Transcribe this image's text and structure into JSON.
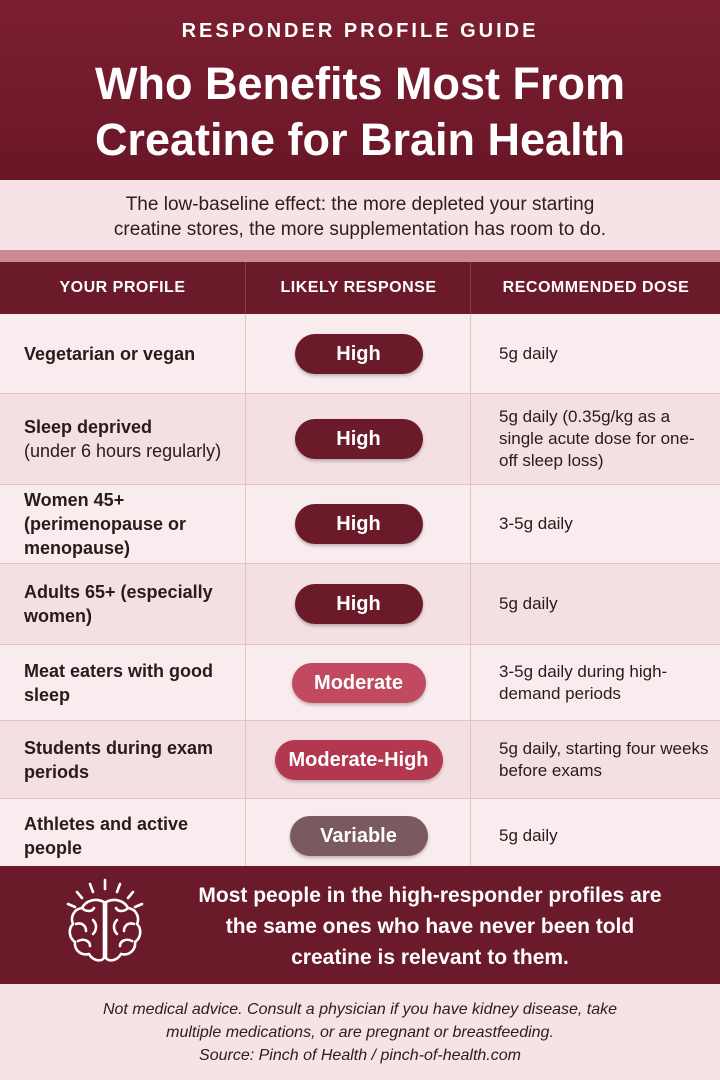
{
  "header": {
    "kicker": "RESPONDER PROFILE GUIDE",
    "title_line1": "Who Benefits Most From",
    "title_line2": "Creatine for Brain Health"
  },
  "intro": {
    "line1": "The low-baseline effect: the more depleted your starting",
    "line2": "creatine stores, the more supplementation has room to do."
  },
  "table": {
    "columns": [
      "YOUR PROFILE",
      "LIKELY RESPONSE",
      "RECOMMENDED DOSE"
    ],
    "rows": [
      {
        "profile_bold": "Vegetarian or vegan",
        "profile_note": "",
        "response": "High",
        "dose": "5g daily"
      },
      {
        "profile_bold": "Sleep deprived",
        "profile_note": "(under 6 hours regularly)",
        "response": "High",
        "dose": "5g daily (0.35g/kg as a single acute dose for one-off sleep loss)"
      },
      {
        "profile_bold": "Women 45+ (perimenopause or menopause)",
        "profile_note": "",
        "response": "High",
        "dose": "3-5g daily"
      },
      {
        "profile_bold": "Adults 65+ (especially women)",
        "profile_note": "",
        "response": "High",
        "dose": "5g daily"
      },
      {
        "profile_bold": "Meat eaters with good sleep",
        "profile_note": "",
        "response": "Moderate",
        "dose": "3-5g daily during high-demand periods"
      },
      {
        "profile_bold": "Students during exam periods",
        "profile_note": "",
        "response": "Moderate-High",
        "dose": "5g daily, starting four weeks before exams"
      },
      {
        "profile_bold": "Athletes and active people",
        "profile_note": "",
        "response": "Variable",
        "dose": "5g daily"
      }
    ]
  },
  "callout": {
    "icon": "brain-icon",
    "line1": "Most people in the high-responder profiles are",
    "line2": "the same ones who have never been told",
    "line3": "creatine is relevant to them."
  },
  "footer": {
    "line1": "Not medical advice. Consult a physician if you have kidney disease, take",
    "line2": "multiple medications, or are pregnant or breastfeeding.",
    "line3": "Source: Pinch of Health / pinch-of-health.com"
  },
  "colors": {
    "primary": "#6b1a2a",
    "moderate": "#c24a60",
    "moderate_high": "#b3384f",
    "variable": "#7a5a5e",
    "background": "#f6e6e8"
  }
}
